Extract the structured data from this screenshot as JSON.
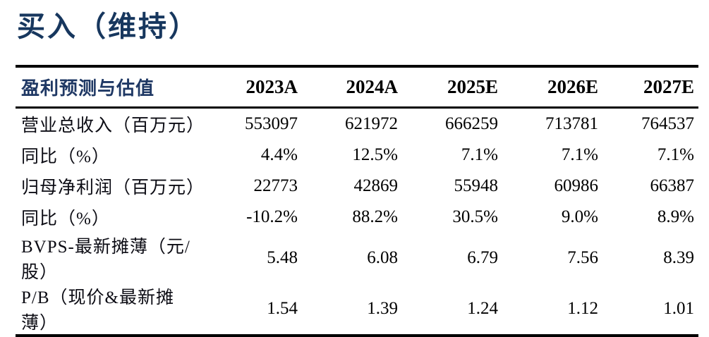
{
  "page": {
    "title": "买入（维持）"
  },
  "colors": {
    "title": "#17375E",
    "header_label": "#1F3864",
    "body_text": "#000000",
    "rule": "#000000",
    "background": "#FFFFFF"
  },
  "table": {
    "header": {
      "label": "盈利预测与估值",
      "columns": [
        "2023A",
        "2024A",
        "2025E",
        "2026E",
        "2027E"
      ]
    },
    "rows": [
      {
        "label": "营业总收入（百万元）",
        "values": [
          "553097",
          "621972",
          "666259",
          "713781",
          "764537"
        ]
      },
      {
        "label": "同比（%）",
        "values": [
          "4.4%",
          "12.5%",
          "7.1%",
          "7.1%",
          "7.1%"
        ]
      },
      {
        "label": "归母净利润（百万元）",
        "values": [
          "22773",
          "42869",
          "55948",
          "60986",
          "66387"
        ]
      },
      {
        "label": "同比（%）",
        "values": [
          "-10.2%",
          "88.2%",
          "30.5%",
          "9.0%",
          "8.9%"
        ]
      },
      {
        "label": "BVPS-最新摊薄（元/股）",
        "values": [
          "5.48",
          "6.08",
          "6.79",
          "7.56",
          "8.39"
        ]
      },
      {
        "label": "P/B（现价&最新摊薄）",
        "values": [
          "1.54",
          "1.39",
          "1.24",
          "1.12",
          "1.01"
        ]
      }
    ]
  }
}
